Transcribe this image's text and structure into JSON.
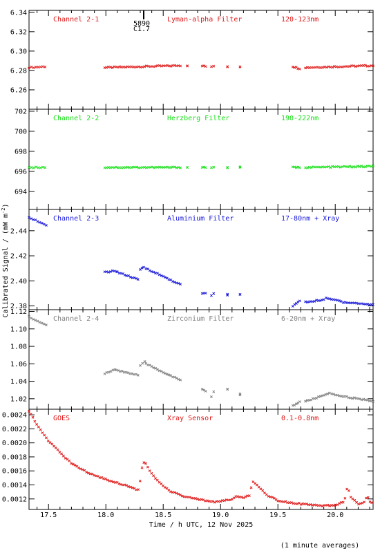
{
  "chart_data": {
    "type": "scatter",
    "y_axis_label": "Calibrated Signal / (mW m",
    "y_axis_label_sup": "-2",
    "y_axis_label_end": ")",
    "x_axis_label": "Time / h UTC, 12 Nov 2025",
    "footnote": "(1 minute averages)",
    "xlim": [
      17.33,
      20.33
    ],
    "x_ticks": [
      17.5,
      18.0,
      18.5,
      19.0,
      19.5,
      20.0
    ],
    "x_tick_labels": [
      "17.5",
      "18.0",
      "18.5",
      "19.0",
      "19.5",
      "20.0"
    ],
    "event_marker": {
      "x": 18.33,
      "label_top": "5890",
      "label_bottom": "C1.7"
    },
    "panels": [
      {
        "name": "Channel 2-1",
        "filter": "Lyman-alpha Filter",
        "band": "120-123nm",
        "color": "#e01818",
        "ylim": [
          6.24,
          6.342
        ],
        "y_ticks": [
          6.26,
          6.28,
          6.3,
          6.32,
          6.34
        ],
        "y_tick_labels": [
          "6.26",
          "6.28",
          "6.30",
          "6.32",
          "6.34"
        ],
        "segments": [
          {
            "x0": 17.33,
            "x1": 17.47,
            "y0": 6.283,
            "y1": 6.284,
            "step": 0.02
          },
          {
            "x0": 17.99,
            "x1": 18.65,
            "y0": 6.283,
            "y1": 6.285,
            "step": 0.0167
          },
          {
            "x0": 18.71,
            "x1": 18.71,
            "y0": 6.285,
            "y1": 6.285,
            "step": 0.05
          },
          {
            "x0": 18.84,
            "x1": 18.87,
            "y0": 6.285,
            "y1": 6.284,
            "step": 0.0167
          },
          {
            "x0": 18.92,
            "x1": 18.94,
            "y0": 6.284,
            "y1": 6.284,
            "step": 0.0167
          },
          {
            "x0": 19.06,
            "x1": 19.06,
            "y0": 6.284,
            "y1": 6.284,
            "step": 0.05
          },
          {
            "x0": 19.17,
            "x1": 19.17,
            "y0": 6.284,
            "y1": 6.284,
            "step": 0.05
          },
          {
            "x0": 19.63,
            "x1": 19.69,
            "y0": 6.284,
            "y1": 6.282,
            "step": 0.0167
          },
          {
            "x0": 19.74,
            "x1": 20.33,
            "y0": 6.283,
            "y1": 6.285,
            "step": 0.0167
          }
        ]
      },
      {
        "name": "Channel 2-2",
        "filter": "Herzberg Filter",
        "band": "190-222nm",
        "color": "#18e018",
        "ylim": [
          692.2,
          702.2
        ],
        "y_ticks": [
          694,
          696,
          698,
          700,
          702
        ],
        "y_tick_labels": [
          "694",
          "696",
          "698",
          "700",
          "702"
        ],
        "segments": [
          {
            "x0": 17.33,
            "x1": 17.47,
            "y0": 696.4,
            "y1": 696.4,
            "step": 0.02
          },
          {
            "x0": 17.99,
            "x1": 18.65,
            "y0": 696.4,
            "y1": 696.4,
            "step": 0.0167
          },
          {
            "x0": 18.71,
            "x1": 18.71,
            "y0": 696.4,
            "y1": 696.4,
            "step": 0.05
          },
          {
            "x0": 18.84,
            "x1": 18.87,
            "y0": 696.4,
            "y1": 696.4,
            "step": 0.0167
          },
          {
            "x0": 18.92,
            "x1": 18.94,
            "y0": 696.4,
            "y1": 696.4,
            "step": 0.0167
          },
          {
            "x0": 19.06,
            "x1": 19.06,
            "y0": 696.4,
            "y1": 696.4,
            "step": 0.05
          },
          {
            "x0": 19.17,
            "x1": 19.17,
            "y0": 696.4,
            "y1": 696.4,
            "step": 0.05
          },
          {
            "x0": 19.63,
            "x1": 19.69,
            "y0": 696.4,
            "y1": 696.4,
            "step": 0.0167
          },
          {
            "x0": 19.74,
            "x1": 20.33,
            "y0": 696.4,
            "y1": 696.5,
            "step": 0.0167
          }
        ]
      },
      {
        "name": "Channel 2-3",
        "filter": "Aluminium Filter",
        "band": "17-80nm + Xray",
        "color": "#1818d8",
        "ylim": [
          2.377,
          2.457
        ],
        "y_ticks": [
          2.38,
          2.4,
          2.42,
          2.44
        ],
        "y_tick_labels": [
          "2.38",
          "2.40",
          "2.42",
          "2.44"
        ],
        "segments": [
          {
            "x0": 17.33,
            "x1": 17.48,
            "y0": 2.451,
            "y1": 2.444,
            "step": 0.02
          },
          {
            "x0": 17.99,
            "x1": 18.09,
            "y0": 2.407,
            "y1": 2.408,
            "step": 0.0167
          },
          {
            "x0": 18.1,
            "x1": 18.28,
            "y0": 2.407,
            "y1": 2.401,
            "step": 0.0167
          },
          {
            "x0": 18.3,
            "x1": 18.33,
            "y0": 2.409,
            "y1": 2.411,
            "step": 0.0167
          },
          {
            "x0": 18.35,
            "x1": 18.65,
            "y0": 2.41,
            "y1": 2.397,
            "step": 0.0167
          },
          {
            "x0": 18.84,
            "x1": 18.87,
            "y0": 2.39,
            "y1": 2.39,
            "step": 0.0167
          },
          {
            "x0": 18.92,
            "x1": 18.94,
            "y0": 2.388,
            "y1": 2.39,
            "step": 0.0167
          },
          {
            "x0": 19.06,
            "x1": 19.06,
            "y0": 2.389,
            "y1": 2.389,
            "step": 0.05
          },
          {
            "x0": 19.17,
            "x1": 19.17,
            "y0": 2.389,
            "y1": 2.389,
            "step": 0.05
          },
          {
            "x0": 19.63,
            "x1": 19.69,
            "y0": 2.38,
            "y1": 2.384,
            "step": 0.0167
          },
          {
            "x0": 19.74,
            "x1": 19.9,
            "y0": 2.383,
            "y1": 2.385,
            "step": 0.0167
          },
          {
            "x0": 19.92,
            "x1": 20.05,
            "y0": 2.386,
            "y1": 2.384,
            "step": 0.0167
          },
          {
            "x0": 20.07,
            "x1": 20.33,
            "y0": 2.383,
            "y1": 2.381,
            "step": 0.0167
          }
        ]
      },
      {
        "name": "Channel 2-4",
        "filter": "Zirconium Filter",
        "band": "6-20nm + Xray",
        "color": "#808080",
        "ylim": [
          1.008,
          1.122
        ],
        "y_ticks": [
          1.02,
          1.04,
          1.06,
          1.08,
          1.1,
          1.12
        ],
        "y_tick_labels": [
          "1.02",
          "1.04",
          "1.06",
          "1.08",
          "1.10",
          "1.12"
        ],
        "segments": [
          {
            "x0": 17.33,
            "x1": 17.48,
            "y0": 1.114,
            "y1": 1.104,
            "step": 0.02
          },
          {
            "x0": 17.99,
            "x1": 18.08,
            "y0": 1.049,
            "y1": 1.053,
            "step": 0.0167
          },
          {
            "x0": 18.09,
            "x1": 18.28,
            "y0": 1.053,
            "y1": 1.047,
            "step": 0.0167
          },
          {
            "x0": 18.3,
            "x1": 18.34,
            "y0": 1.058,
            "y1": 1.062,
            "step": 0.0167
          },
          {
            "x0": 18.35,
            "x1": 18.65,
            "y0": 1.06,
            "y1": 1.041,
            "step": 0.0167
          },
          {
            "x0": 18.84,
            "x1": 18.87,
            "y0": 1.031,
            "y1": 1.029,
            "step": 0.0167
          },
          {
            "x0": 18.92,
            "x1": 18.94,
            "y0": 1.022,
            "y1": 1.028,
            "step": 0.0167
          },
          {
            "x0": 19.06,
            "x1": 19.06,
            "y0": 1.031,
            "y1": 1.031,
            "step": 0.05
          },
          {
            "x0": 19.17,
            "x1": 19.17,
            "y0": 1.025,
            "y1": 1.025,
            "step": 0.05
          },
          {
            "x0": 19.63,
            "x1": 19.69,
            "y0": 1.012,
            "y1": 1.016,
            "step": 0.0167
          },
          {
            "x0": 19.74,
            "x1": 19.95,
            "y0": 1.017,
            "y1": 1.026,
            "step": 0.0167
          },
          {
            "x0": 19.97,
            "x1": 20.33,
            "y0": 1.025,
            "y1": 1.017,
            "step": 0.0167
          }
        ]
      },
      {
        "name": "GOES",
        "filter": "Xray Sensor",
        "band": "0.1-0.8nm",
        "color": "#e01818",
        "ylim": [
          0.00105,
          0.00248
        ],
        "y_ticks": [
          0.0012,
          0.0014,
          0.0016,
          0.0018,
          0.002,
          0.0022,
          0.0024
        ],
        "y_tick_labels": [
          "0.0012",
          "0.0014",
          "0.0016",
          "0.0018",
          "0.0020",
          "0.0022",
          "0.0024"
        ],
        "profile": [
          [
            17.33,
            0.00245
          ],
          [
            17.4,
            0.00226
          ],
          [
            17.5,
            0.00203
          ],
          [
            17.6,
            0.00186
          ],
          [
            17.7,
            0.00171
          ],
          [
            17.8,
            0.00161
          ],
          [
            17.9,
            0.00154
          ],
          [
            18.0,
            0.00148
          ],
          [
            18.1,
            0.00143
          ],
          [
            18.2,
            0.00138
          ],
          [
            18.28,
            0.00133
          ],
          [
            18.29,
            0.00135
          ],
          [
            18.32,
            0.0017
          ],
          [
            18.34,
            0.00173
          ],
          [
            18.38,
            0.0016
          ],
          [
            18.45,
            0.00146
          ],
          [
            18.55,
            0.00132
          ],
          [
            18.65,
            0.00125
          ],
          [
            18.75,
            0.00121
          ],
          [
            18.85,
            0.00118
          ],
          [
            18.95,
            0.00116
          ],
          [
            19.05,
            0.00118
          ],
          [
            19.1,
            0.0012
          ],
          [
            19.15,
            0.00124
          ],
          [
            19.2,
            0.00121
          ],
          [
            19.25,
            0.00125
          ],
          [
            19.28,
            0.00145
          ],
          [
            19.32,
            0.0014
          ],
          [
            19.4,
            0.00126
          ],
          [
            19.5,
            0.00118
          ],
          [
            19.6,
            0.00115
          ],
          [
            19.7,
            0.00113
          ],
          [
            19.8,
            0.00111
          ],
          [
            19.9,
            0.0011
          ],
          [
            20.0,
            0.00111
          ],
          [
            20.08,
            0.00116
          ],
          [
            20.11,
            0.0014
          ],
          [
            20.13,
            0.00123
          ],
          [
            20.2,
            0.00113
          ],
          [
            20.25,
            0.00114
          ],
          [
            20.28,
            0.00125
          ],
          [
            20.3,
            0.00116
          ],
          [
            20.33,
            0.00113
          ]
        ],
        "step": 0.0167
      }
    ]
  }
}
